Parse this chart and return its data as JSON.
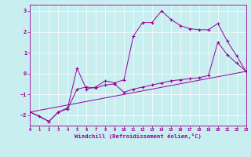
{
  "xlabel": "Windchill (Refroidissement éolien,°C)",
  "bg_color": "#c8eef0",
  "line_color": "#990099",
  "xlim": [
    0,
    23
  ],
  "ylim": [
    -2.5,
    3.3
  ],
  "xticks": [
    0,
    1,
    2,
    3,
    4,
    5,
    6,
    7,
    8,
    9,
    10,
    11,
    12,
    13,
    14,
    15,
    16,
    17,
    18,
    19,
    20,
    21,
    22,
    23
  ],
  "yticks": [
    -2,
    -1,
    0,
    1,
    2,
    3
  ],
  "line1_zigzag": [
    [
      0,
      -1.85
    ],
    [
      1,
      -2.05
    ],
    [
      2,
      -2.3
    ],
    [
      3,
      -1.85
    ],
    [
      4,
      -1.65
    ],
    [
      5,
      0.25
    ],
    [
      6,
      -0.75
    ],
    [
      7,
      -0.65
    ],
    [
      8,
      -0.35
    ],
    [
      9,
      -0.45
    ],
    [
      10,
      -0.3
    ],
    [
      11,
      1.8
    ],
    [
      12,
      2.45
    ],
    [
      13,
      2.45
    ],
    [
      14,
      3.0
    ],
    [
      15,
      2.6
    ],
    [
      16,
      2.3
    ],
    [
      17,
      2.15
    ],
    [
      18,
      2.1
    ],
    [
      19,
      2.1
    ],
    [
      20,
      2.4
    ],
    [
      21,
      1.55
    ],
    [
      22,
      0.85
    ],
    [
      23,
      0.1
    ]
  ],
  "line2_mid": [
    [
      0,
      -1.85
    ],
    [
      2,
      -2.3
    ],
    [
      3,
      -1.85
    ],
    [
      4,
      -1.7
    ],
    [
      5,
      -0.75
    ],
    [
      6,
      -0.65
    ],
    [
      7,
      -0.7
    ],
    [
      8,
      -0.55
    ],
    [
      9,
      -0.5
    ],
    [
      10,
      -0.9
    ],
    [
      11,
      -0.75
    ],
    [
      12,
      -0.65
    ],
    [
      13,
      -0.55
    ],
    [
      14,
      -0.45
    ],
    [
      15,
      -0.35
    ],
    [
      16,
      -0.3
    ],
    [
      17,
      -0.25
    ],
    [
      18,
      -0.2
    ],
    [
      19,
      -0.1
    ],
    [
      20,
      1.5
    ],
    [
      21,
      0.9
    ],
    [
      22,
      0.5
    ],
    [
      23,
      0.1
    ]
  ],
  "line3_low": [
    [
      0,
      -1.85
    ],
    [
      23,
      0.1
    ]
  ]
}
